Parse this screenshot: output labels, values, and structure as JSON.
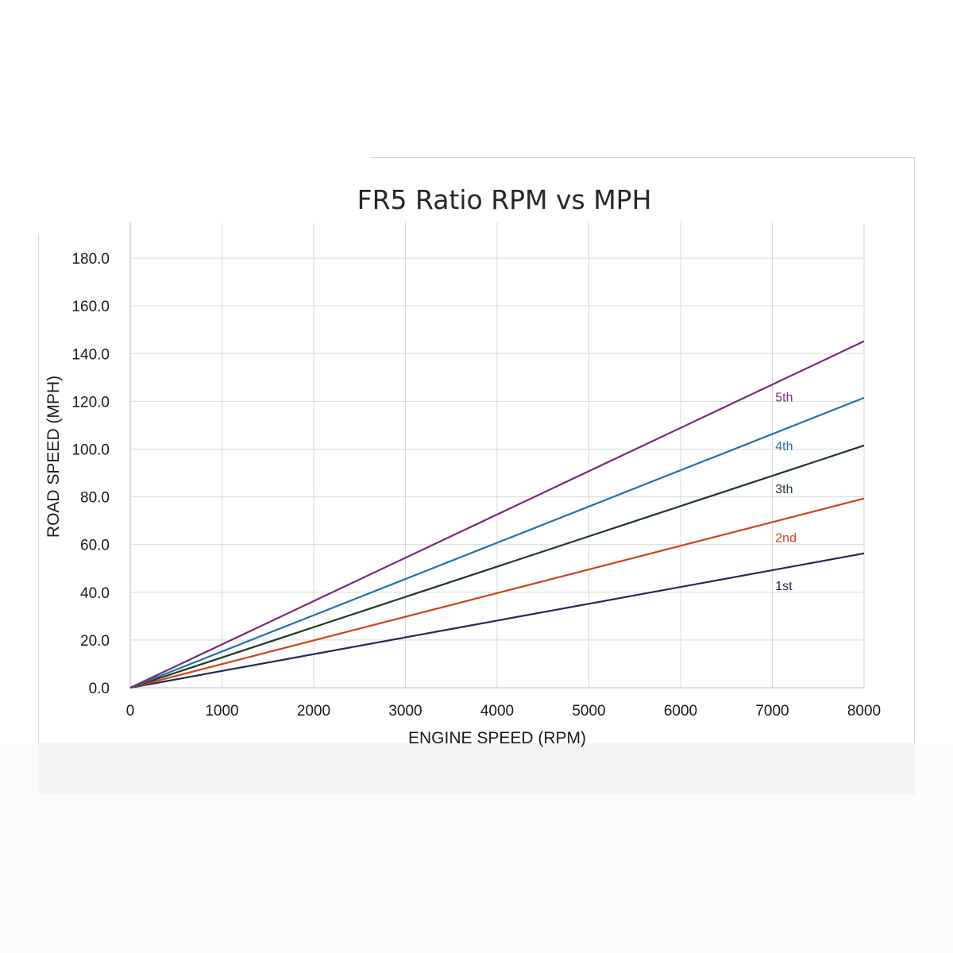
{
  "chart_data": {
    "type": "line",
    "title": "FR5 Ratio RPM vs MPH",
    "xlabel": "ENGINE SPEED (RPM)",
    "ylabel": "ROAD SPEED (MPH)",
    "xlim": [
      0,
      8000
    ],
    "ylim": [
      0,
      195
    ],
    "xticks": [
      0,
      1000,
      2000,
      3000,
      4000,
      5000,
      6000,
      7000,
      8000
    ],
    "yticks": [
      0,
      20,
      40,
      60,
      80,
      100,
      120,
      140,
      160,
      180
    ],
    "ytick_labels": [
      "0.0",
      "20.0",
      "40.0",
      "60.0",
      "80.0",
      "100.0",
      "120.0",
      "140.0",
      "160.0",
      "180.0"
    ],
    "grid": true,
    "legend": "inline labels near line ends",
    "series": [
      {
        "name": "1st",
        "color": "#1f2a5c",
        "x": [
          0,
          8000
        ],
        "y": [
          0,
          56.3
        ],
        "label_at": [
          7050,
          43
        ]
      },
      {
        "name": "2nd",
        "color": "#d2401a",
        "x": [
          0,
          8000
        ],
        "y": [
          0,
          79.3
        ],
        "label_at": [
          7050,
          63
        ]
      },
      {
        "name": "3th",
        "color": "#1d3a1f",
        "x": [
          0,
          8000
        ],
        "y": [
          0,
          101.5
        ],
        "label_at": [
          7050,
          83.5
        ]
      },
      {
        "name": "4th",
        "color": "#1f72b0",
        "x": [
          0,
          8000
        ],
        "y": [
          0,
          121.5
        ],
        "label_at": [
          7050,
          101.5
        ]
      },
      {
        "name": "5th",
        "color": "#7a2a7a",
        "x": [
          0,
          8000
        ],
        "y": [
          0,
          145.2
        ],
        "label_at": [
          7050,
          122
        ]
      }
    ]
  }
}
